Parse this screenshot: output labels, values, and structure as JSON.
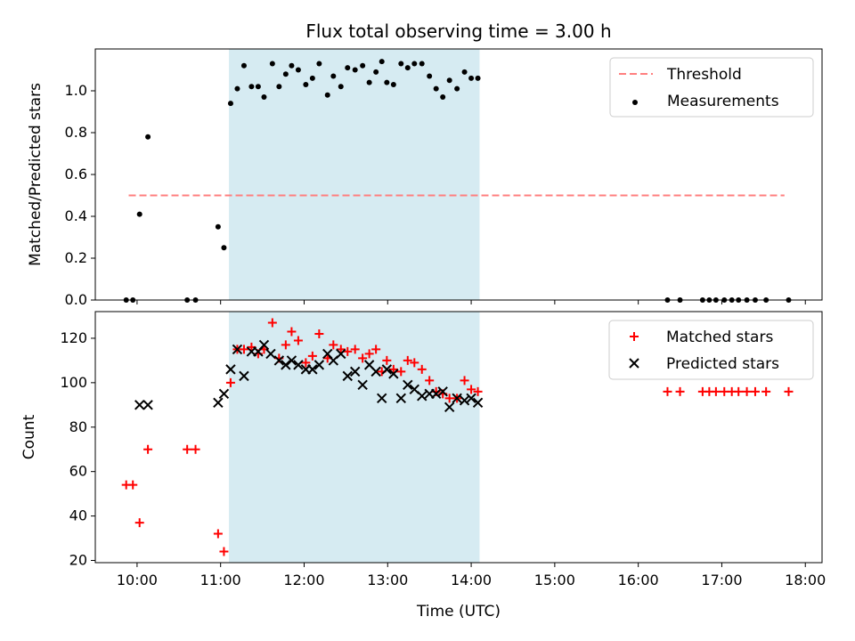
{
  "chart_data": [
    {
      "type": "scatter",
      "panel": "top",
      "title": "Flux total observing time = 3.00 h",
      "xlabel": "",
      "ylabel": "Matched/Predicted stars",
      "ylim": [
        0,
        1.2
      ],
      "yticks": [
        "0.0",
        "0.2",
        "0.4",
        "0.6",
        "0.8",
        "1.0"
      ],
      "ytick_values": [
        0,
        0.2,
        0.4,
        0.6,
        0.8,
        1.0
      ],
      "xlim": [
        9.5,
        18.2
      ],
      "shaded_interval": [
        11.1,
        14.1
      ],
      "legend_position": "top-right",
      "legend": [
        "Threshold",
        "Measurements"
      ],
      "threshold": {
        "name": "Threshold",
        "value": 0.5,
        "x_range": [
          9.9,
          17.75
        ],
        "color": "#ff7f7f"
      },
      "series": [
        {
          "name": "Measurements",
          "color": "#000000",
          "points": [
            [
              9.87,
              0
            ],
            [
              9.95,
              0
            ],
            [
              10.03,
              0.41
            ],
            [
              10.13,
              0.78
            ],
            [
              10.6,
              0
            ],
            [
              10.7,
              0
            ],
            [
              10.97,
              0.35
            ],
            [
              11.04,
              0.25
            ],
            [
              11.12,
              0.94
            ],
            [
              11.2,
              1.01
            ],
            [
              11.28,
              1.12
            ],
            [
              11.37,
              1.02
            ],
            [
              11.45,
              1.02
            ],
            [
              11.52,
              0.97
            ],
            [
              11.62,
              1.13
            ],
            [
              11.7,
              1.02
            ],
            [
              11.78,
              1.08
            ],
            [
              11.85,
              1.12
            ],
            [
              11.93,
              1.1
            ],
            [
              12.02,
              1.03
            ],
            [
              12.1,
              1.06
            ],
            [
              12.18,
              1.13
            ],
            [
              12.28,
              0.98
            ],
            [
              12.35,
              1.07
            ],
            [
              12.44,
              1.02
            ],
            [
              12.52,
              1.11
            ],
            [
              12.61,
              1.1
            ],
            [
              12.7,
              1.12
            ],
            [
              12.78,
              1.04
            ],
            [
              12.86,
              1.09
            ],
            [
              12.93,
              1.14
            ],
            [
              12.99,
              1.04
            ],
            [
              13.07,
              1.03
            ],
            [
              13.16,
              1.13
            ],
            [
              13.24,
              1.11
            ],
            [
              13.32,
              1.13
            ],
            [
              13.41,
              1.13
            ],
            [
              13.5,
              1.07
            ],
            [
              13.58,
              1.01
            ],
            [
              13.66,
              0.97
            ],
            [
              13.74,
              1.05
            ],
            [
              13.83,
              1.01
            ],
            [
              13.92,
              1.09
            ],
            [
              14.0,
              1.06
            ],
            [
              14.08,
              1.06
            ],
            [
              16.35,
              0
            ],
            [
              16.5,
              0
            ],
            [
              16.77,
              0
            ],
            [
              16.85,
              0
            ],
            [
              16.93,
              0
            ],
            [
              17.03,
              0
            ],
            [
              17.12,
              0
            ],
            [
              17.2,
              0
            ],
            [
              17.3,
              0
            ],
            [
              17.4,
              0
            ],
            [
              17.53,
              0
            ],
            [
              17.8,
              0
            ]
          ]
        }
      ]
    },
    {
      "type": "scatter",
      "panel": "bottom",
      "title": "",
      "xlabel": "Time (UTC)",
      "ylabel": "Count",
      "ylim": [
        19,
        132
      ],
      "yticks": [
        "20",
        "40",
        "60",
        "80",
        "100",
        "120"
      ],
      "ytick_values": [
        20,
        40,
        60,
        80,
        100,
        120
      ],
      "xlim": [
        9.5,
        18.2
      ],
      "xticks": [
        "10:00",
        "11:00",
        "12:00",
        "13:00",
        "14:00",
        "15:00",
        "16:00",
        "17:00",
        "18:00"
      ],
      "xtick_values": [
        10,
        11,
        12,
        13,
        14,
        15,
        16,
        17,
        18
      ],
      "shaded_interval": [
        11.1,
        14.1
      ],
      "legend_position": "top-right",
      "legend": [
        "Matched stars",
        "Predicted stars"
      ],
      "series": [
        {
          "name": "Matched stars",
          "marker": "plus",
          "color": "#ff0000",
          "points": [
            [
              9.87,
              54
            ],
            [
              9.95,
              54
            ],
            [
              10.03,
              37
            ],
            [
              10.13,
              70
            ],
            [
              10.6,
              70
            ],
            [
              10.7,
              70
            ],
            [
              10.97,
              32
            ],
            [
              11.04,
              24
            ],
            [
              11.12,
              100
            ],
            [
              11.2,
              115
            ],
            [
              11.28,
              115
            ],
            [
              11.37,
              116
            ],
            [
              11.45,
              113
            ],
            [
              11.52,
              115
            ],
            [
              11.62,
              127
            ],
            [
              11.7,
              111
            ],
            [
              11.78,
              117
            ],
            [
              11.85,
              123
            ],
            [
              11.93,
              119
            ],
            [
              12.02,
              109
            ],
            [
              12.1,
              112
            ],
            [
              12.18,
              122
            ],
            [
              12.28,
              111
            ],
            [
              12.35,
              117
            ],
            [
              12.44,
              115
            ],
            [
              12.52,
              114
            ],
            [
              12.61,
              115
            ],
            [
              12.7,
              111
            ],
            [
              12.78,
              113
            ],
            [
              12.86,
              115
            ],
            [
              12.93,
              105
            ],
            [
              12.99,
              110
            ],
            [
              13.07,
              106
            ],
            [
              13.16,
              105
            ],
            [
              13.24,
              110
            ],
            [
              13.32,
              109
            ],
            [
              13.41,
              106
            ],
            [
              13.5,
              101
            ],
            [
              13.58,
              96
            ],
            [
              13.66,
              95
            ],
            [
              13.74,
              93
            ],
            [
              13.83,
              93
            ],
            [
              13.92,
              101
            ],
            [
              14.0,
              97
            ],
            [
              14.08,
              96
            ],
            [
              16.35,
              96
            ],
            [
              16.5,
              96
            ],
            [
              16.77,
              96
            ],
            [
              16.85,
              96
            ],
            [
              16.93,
              96
            ],
            [
              17.03,
              96
            ],
            [
              17.12,
              96
            ],
            [
              17.2,
              96
            ],
            [
              17.3,
              96
            ],
            [
              17.4,
              96
            ],
            [
              17.53,
              96
            ],
            [
              17.8,
              96
            ]
          ]
        },
        {
          "name": "Predicted stars",
          "marker": "x",
          "color": "#000000",
          "points": [
            [
              10.03,
              90
            ],
            [
              10.13,
              90
            ],
            [
              10.97,
              91
            ],
            [
              11.04,
              95
            ],
            [
              11.12,
              106
            ],
            [
              11.2,
              115
            ],
            [
              11.28,
              103
            ],
            [
              11.37,
              114
            ],
            [
              11.45,
              114
            ],
            [
              11.52,
              117
            ],
            [
              11.6,
              113
            ],
            [
              11.7,
              110
            ],
            [
              11.78,
              108
            ],
            [
              11.85,
              110
            ],
            [
              11.93,
              108
            ],
            [
              12.02,
              106
            ],
            [
              12.1,
              106
            ],
            [
              12.18,
              108
            ],
            [
              12.28,
              113
            ],
            [
              12.35,
              110
            ],
            [
              12.44,
              113
            ],
            [
              12.52,
              103
            ],
            [
              12.61,
              105
            ],
            [
              12.7,
              99
            ],
            [
              12.78,
              108
            ],
            [
              12.86,
              105
            ],
            [
              12.93,
              93
            ],
            [
              12.99,
              106
            ],
            [
              13.07,
              104
            ],
            [
              13.16,
              93
            ],
            [
              13.24,
              99
            ],
            [
              13.32,
              97
            ],
            [
              13.41,
              94
            ],
            [
              13.5,
              95
            ],
            [
              13.58,
              95
            ],
            [
              13.66,
              96
            ],
            [
              13.74,
              89
            ],
            [
              13.83,
              93
            ],
            [
              13.92,
              92
            ],
            [
              14.0,
              93
            ],
            [
              14.08,
              91
            ]
          ]
        }
      ]
    }
  ]
}
